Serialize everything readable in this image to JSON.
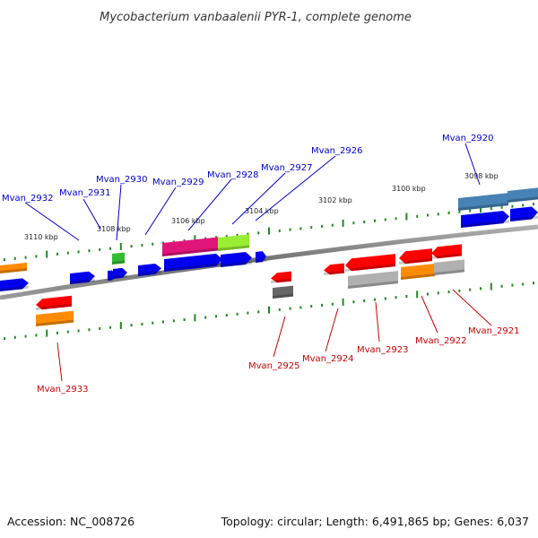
{
  "title": "Mycobacterium vanbaalenii PYR-1, complete genome",
  "accession": "Accession: NC_008726",
  "summary": "Topology: circular; Length: 6,491,865 bp; Genes: 6,037",
  "colors": {
    "top_label": "#0000cc",
    "bottom_label": "#cc0000",
    "tick": "#228822",
    "backbone": "#808080"
  },
  "kbp_labels": [
    "3110 kbp",
    "3108 kbp",
    "3106 kbp",
    "3104 kbp",
    "3102 kbp",
    "3100 kbp",
    "3098 kbp"
  ],
  "top_labels": [
    "Mvan_2932",
    "Mvan_2931",
    "Mvan_2930",
    "Mvan_2929",
    "Mvan_2928",
    "Mvan_2927",
    "Mvan_2926",
    "Mvan_2920"
  ],
  "bottom_labels": [
    "Mvan_2933",
    "Mvan_2925",
    "Mvan_2924",
    "Mvan_2923",
    "Mvan_2922",
    "Mvan_2921"
  ]
}
